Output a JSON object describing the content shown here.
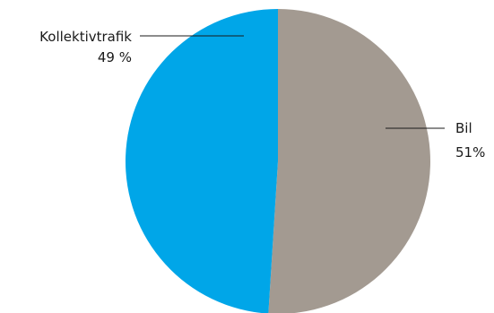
{
  "chart_data": {
    "type": "pie",
    "slices": [
      {
        "label": "Bil",
        "value_text": "51%",
        "value": 51,
        "color": "#a39a91"
      },
      {
        "label": "Kollektivtrafik",
        "value_text": "49 %",
        "value": 49,
        "color": "#00a6e8"
      }
    ]
  }
}
